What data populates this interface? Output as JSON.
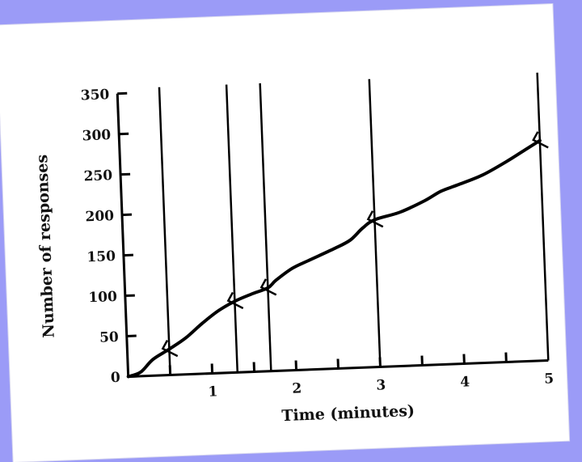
{
  "chart_data": {
    "type": "line",
    "title": "",
    "xlabel": "Time (minutes)",
    "ylabel": "Number of responses",
    "xlim": [
      0,
      5
    ],
    "ylim": [
      0,
      350
    ],
    "x_ticks": [
      1,
      2,
      3,
      4,
      5
    ],
    "x_tick_labels": [
      "1",
      "2",
      "3",
      "4",
      "5"
    ],
    "y_ticks": [
      0,
      50,
      100,
      150,
      200,
      250,
      300,
      350
    ],
    "y_tick_labels": [
      "0",
      "50",
      "100",
      "150",
      "200",
      "250",
      "300",
      "350"
    ],
    "minor_x_ticks": [
      0.5,
      1,
      1.5,
      2,
      2.5,
      3,
      3.5,
      4,
      4.5
    ],
    "series": [
      {
        "name": "",
        "x": [
          0,
          0.15,
          0.3,
          0.5,
          0.7,
          0.9,
          1.1,
          1.3,
          1.5,
          1.7,
          1.8,
          2.0,
          2.2,
          2.5,
          2.7,
          2.85,
          3.0,
          3.3,
          3.6,
          3.8,
          4.0,
          4.3,
          4.6,
          4.85,
          5.0
        ],
        "y": [
          0,
          5,
          20,
          32,
          45,
          62,
          77,
          88,
          96,
          103,
          112,
          126,
          135,
          148,
          158,
          172,
          182,
          190,
          203,
          214,
          221,
          232,
          248,
          263,
          272
        ],
        "color": "#000000"
      }
    ],
    "vertical_lines_x": [
      0.5,
      1.3,
      1.7,
      3.0,
      5.0
    ],
    "markers": [
      {
        "x": 0.5,
        "y": 32
      },
      {
        "x": 1.3,
        "y": 88
      },
      {
        "x": 1.7,
        "y": 103
      },
      {
        "x": 3.0,
        "y": 182
      },
      {
        "x": 5.0,
        "y": 272
      }
    ],
    "grid": false,
    "legend": "none"
  }
}
